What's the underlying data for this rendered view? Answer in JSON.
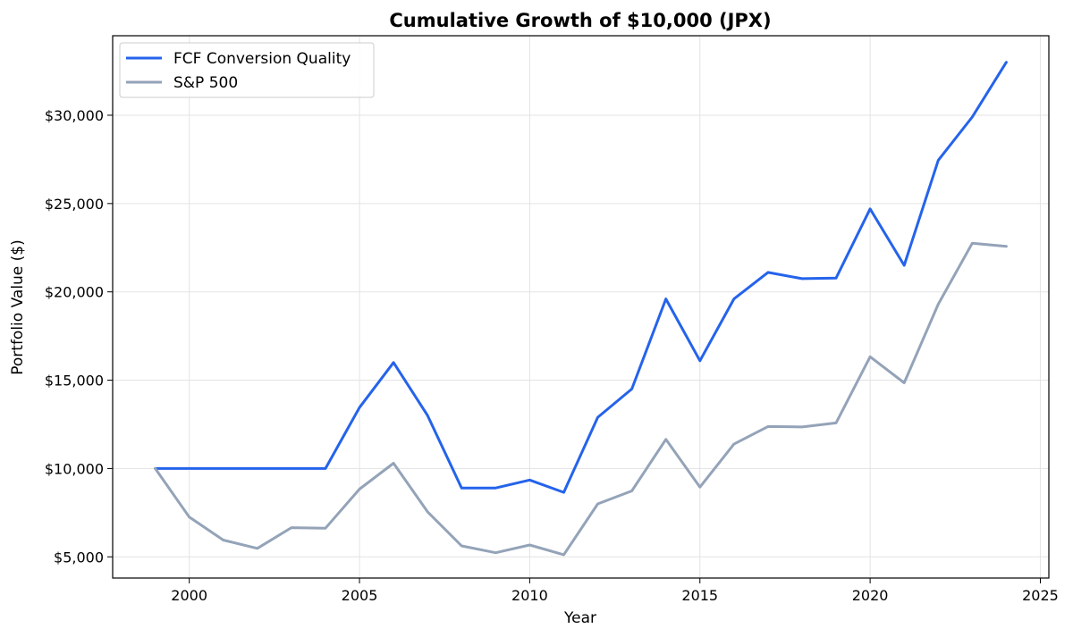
{
  "chart_data": {
    "type": "line",
    "title": "Cumulative Growth of $10,000 (JPX)",
    "xlabel": "Year",
    "ylabel": "Portfolio Value ($)",
    "x": [
      1999,
      2000,
      2001,
      2002,
      2003,
      2004,
      2005,
      2006,
      2007,
      2008,
      2009,
      2010,
      2011,
      2012,
      2013,
      2014,
      2015,
      2016,
      2017,
      2018,
      2019,
      2020,
      2021,
      2022,
      2023,
      2024
    ],
    "xlim": [
      1997.75,
      2025.25
    ],
    "ylim": [
      3800,
      34500
    ],
    "xticks": [
      2000,
      2005,
      2010,
      2015,
      2020,
      2025
    ],
    "xtick_labels": [
      "2000",
      "2005",
      "2010",
      "2015",
      "2020",
      "2025"
    ],
    "yticks": [
      5000,
      10000,
      15000,
      20000,
      25000,
      30000
    ],
    "ytick_labels": [
      "$5,000",
      "$10,000",
      "$15,000",
      "$20,000",
      "$25,000",
      "$30,000"
    ],
    "grid": true,
    "legend_position": "top-left",
    "series": [
      {
        "name": "FCF Conversion Quality",
        "color": "#2563eb",
        "values": [
          10000,
          10000,
          10000,
          10000,
          10000,
          10000,
          13450,
          16000,
          13000,
          8900,
          8900,
          9350,
          8650,
          12900,
          14500,
          19600,
          16100,
          19600,
          21100,
          20750,
          20780,
          24700,
          21500,
          27450,
          29900,
          33000
        ]
      },
      {
        "name": "S&P 500",
        "color": "#94a3b8",
        "values": [
          10000,
          7250,
          5950,
          5480,
          6650,
          6620,
          8830,
          10300,
          7550,
          5620,
          5230,
          5670,
          5120,
          8000,
          8730,
          11650,
          8950,
          11380,
          12380,
          12350,
          12580,
          16330,
          14850,
          19300,
          22750,
          22580
        ]
      }
    ]
  }
}
